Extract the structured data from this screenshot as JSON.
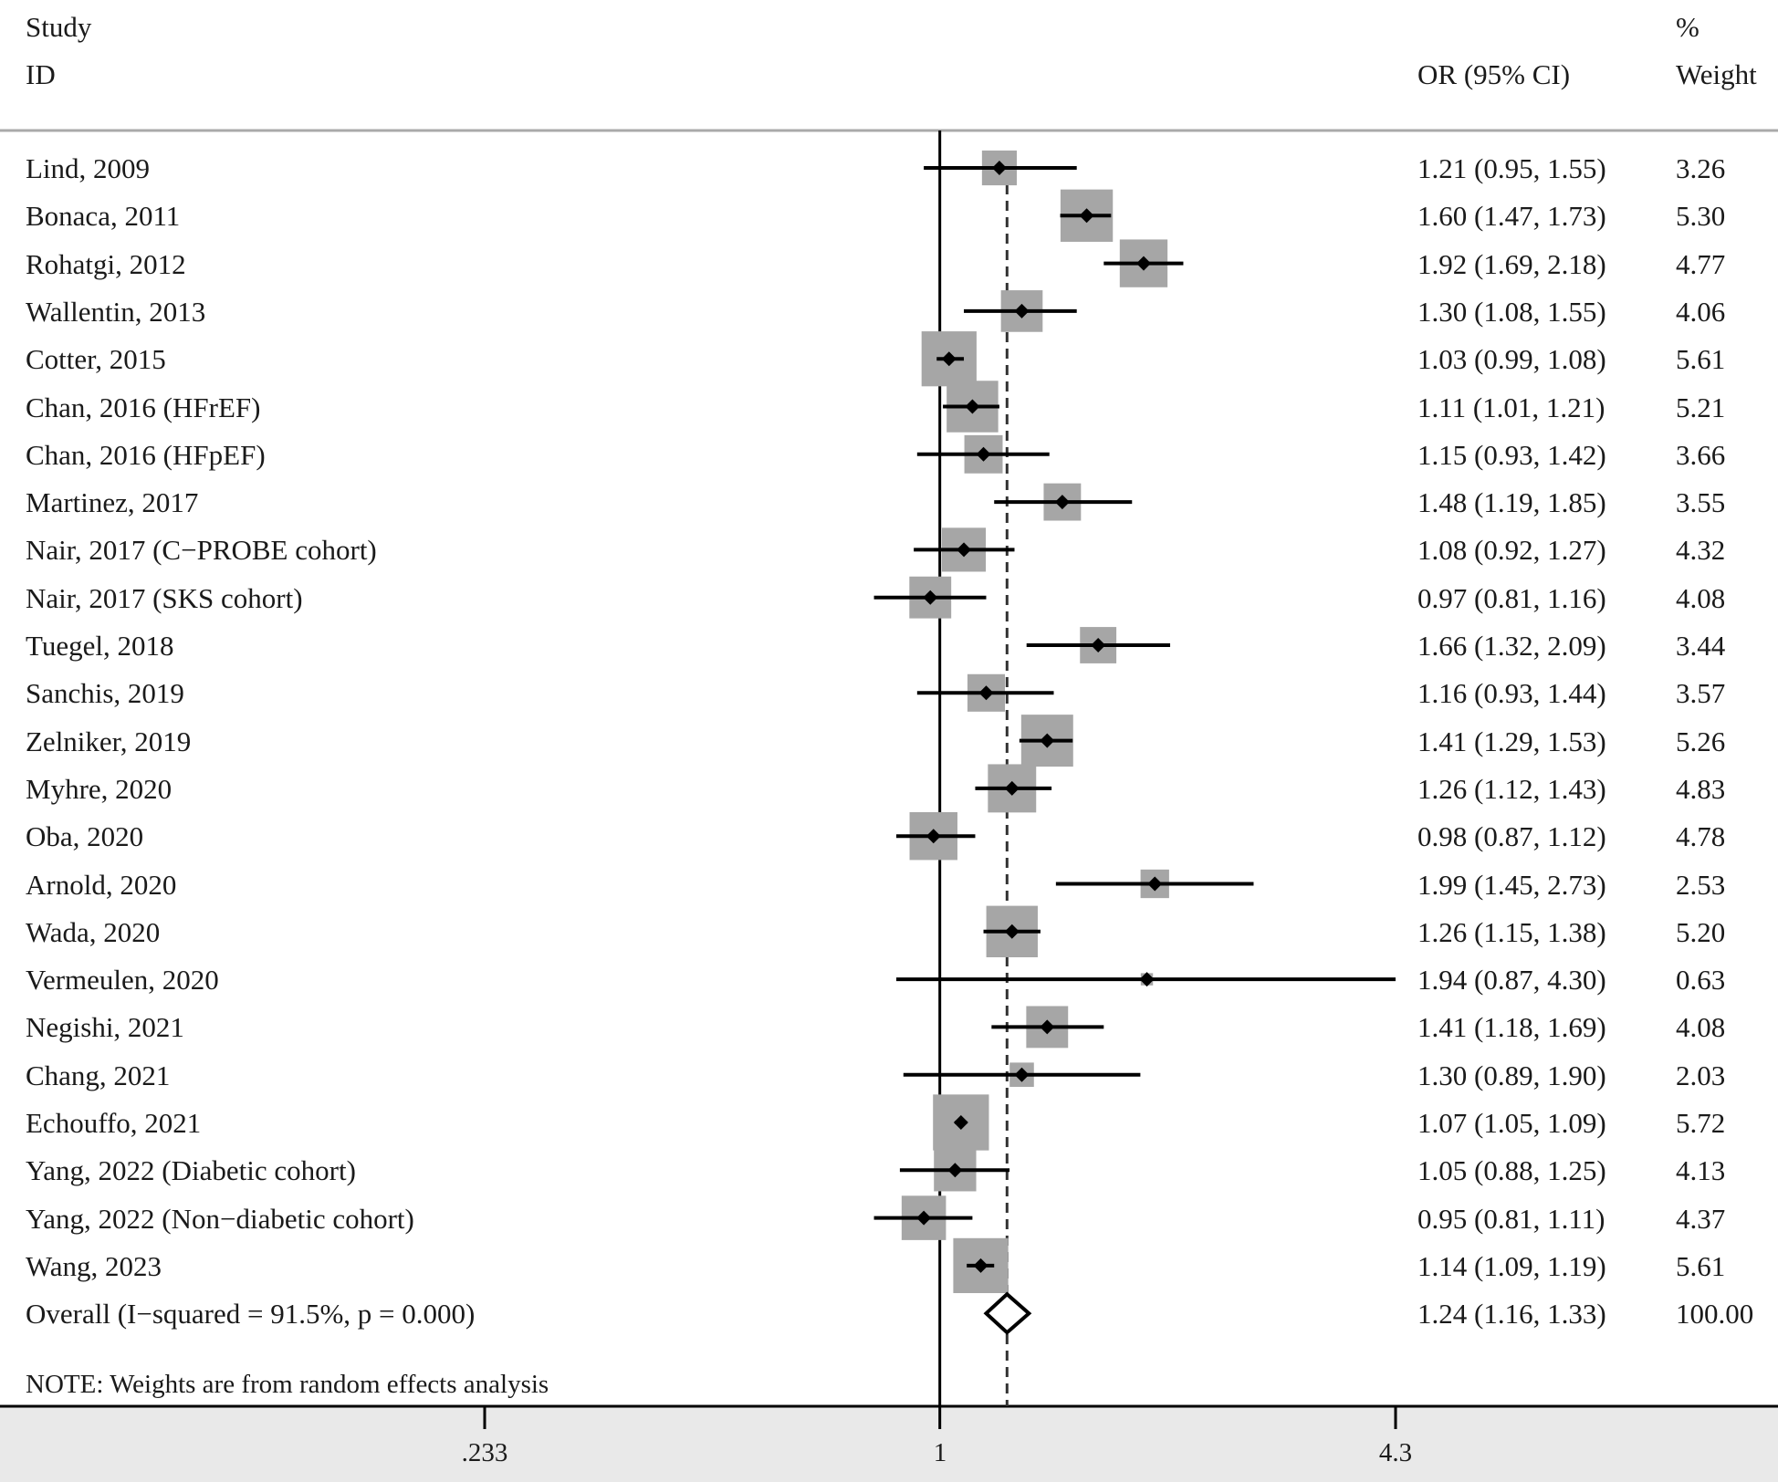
{
  "header": {
    "study_line1": "Study",
    "study_line2": "ID",
    "estimate": "OR (95% CI)",
    "weight_line1": "%",
    "weight_line2": "Weight"
  },
  "note": "NOTE: Weights are from random effects analysis",
  "chart_data": {
    "type": "forest",
    "scale": "log",
    "x_ticks": [
      ".233",
      "1",
      "4.3"
    ],
    "x_range": [
      0.233,
      4.3
    ],
    "null_line": 1,
    "pooled_line": 1.24,
    "studies": [
      {
        "label": "Lind, 2009",
        "or": 1.21,
        "lo": 0.95,
        "hi": 1.55,
        "ci_text": "1.21 (0.95, 1.55)",
        "weight": "3.26"
      },
      {
        "label": "Bonaca, 2011",
        "or": 1.6,
        "lo": 1.47,
        "hi": 1.73,
        "ci_text": "1.60 (1.47, 1.73)",
        "weight": "5.30"
      },
      {
        "label": "Rohatgi, 2012",
        "or": 1.92,
        "lo": 1.69,
        "hi": 2.18,
        "ci_text": "1.92 (1.69, 2.18)",
        "weight": "4.77"
      },
      {
        "label": "Wallentin, 2013",
        "or": 1.3,
        "lo": 1.08,
        "hi": 1.55,
        "ci_text": "1.30 (1.08, 1.55)",
        "weight": "4.06"
      },
      {
        "label": "Cotter, 2015",
        "or": 1.03,
        "lo": 0.99,
        "hi": 1.08,
        "ci_text": "1.03 (0.99, 1.08)",
        "weight": "5.61"
      },
      {
        "label": "Chan, 2016 (HFrEF)",
        "or": 1.11,
        "lo": 1.01,
        "hi": 1.21,
        "ci_text": "1.11 (1.01, 1.21)",
        "weight": "5.21"
      },
      {
        "label": "Chan, 2016 (HFpEF)",
        "or": 1.15,
        "lo": 0.93,
        "hi": 1.42,
        "ci_text": "1.15 (0.93, 1.42)",
        "weight": "3.66"
      },
      {
        "label": "Martinez, 2017",
        "or": 1.48,
        "lo": 1.19,
        "hi": 1.85,
        "ci_text": "1.48 (1.19, 1.85)",
        "weight": "3.55"
      },
      {
        "label": "Nair, 2017 (C−PROBE cohort)",
        "or": 1.08,
        "lo": 0.92,
        "hi": 1.27,
        "ci_text": "1.08 (0.92, 1.27)",
        "weight": "4.32"
      },
      {
        "label": "Nair, 2017 (SKS cohort)",
        "or": 0.97,
        "lo": 0.81,
        "hi": 1.16,
        "ci_text": "0.97 (0.81, 1.16)",
        "weight": "4.08"
      },
      {
        "label": "Tuegel, 2018",
        "or": 1.66,
        "lo": 1.32,
        "hi": 2.09,
        "ci_text": "1.66 (1.32, 2.09)",
        "weight": "3.44"
      },
      {
        "label": "Sanchis, 2019",
        "or": 1.16,
        "lo": 0.93,
        "hi": 1.44,
        "ci_text": "1.16 (0.93, 1.44)",
        "weight": "3.57"
      },
      {
        "label": "Zelniker, 2019",
        "or": 1.41,
        "lo": 1.29,
        "hi": 1.53,
        "ci_text": "1.41 (1.29, 1.53)",
        "weight": "5.26"
      },
      {
        "label": "Myhre, 2020",
        "or": 1.26,
        "lo": 1.12,
        "hi": 1.43,
        "ci_text": "1.26 (1.12, 1.43)",
        "weight": "4.83"
      },
      {
        "label": "Oba, 2020",
        "or": 0.98,
        "lo": 0.87,
        "hi": 1.12,
        "ci_text": "0.98 (0.87, 1.12)",
        "weight": "4.78"
      },
      {
        "label": "Arnold, 2020",
        "or": 1.99,
        "lo": 1.45,
        "hi": 2.73,
        "ci_text": "1.99 (1.45, 2.73)",
        "weight": "2.53"
      },
      {
        "label": "Wada, 2020",
        "or": 1.26,
        "lo": 1.15,
        "hi": 1.38,
        "ci_text": "1.26 (1.15, 1.38)",
        "weight": "5.20"
      },
      {
        "label": "Vermeulen, 2020",
        "or": 1.94,
        "lo": 0.87,
        "hi": 4.3,
        "ci_text": "1.94 (0.87, 4.30)",
        "weight": "0.63"
      },
      {
        "label": "Negishi, 2021",
        "or": 1.41,
        "lo": 1.18,
        "hi": 1.69,
        "ci_text": "1.41 (1.18, 1.69)",
        "weight": "4.08"
      },
      {
        "label": "Chang, 2021",
        "or": 1.3,
        "lo": 0.89,
        "hi": 1.9,
        "ci_text": "1.30 (0.89, 1.90)",
        "weight": "2.03"
      },
      {
        "label": "Echouffo, 2021",
        "or": 1.07,
        "lo": 1.05,
        "hi": 1.09,
        "ci_text": "1.07 (1.05, 1.09)",
        "weight": "5.72"
      },
      {
        "label": "Yang, 2022 (Diabetic cohort)",
        "or": 1.05,
        "lo": 0.88,
        "hi": 1.25,
        "ci_text": "1.05 (0.88, 1.25)",
        "weight": "4.13"
      },
      {
        "label": "Yang, 2022 (Non−diabetic cohort)",
        "or": 0.95,
        "lo": 0.81,
        "hi": 1.11,
        "ci_text": "0.95 (0.81, 1.11)",
        "weight": "4.37"
      },
      {
        "label": "Wang, 2023",
        "or": 1.14,
        "lo": 1.09,
        "hi": 1.19,
        "ci_text": "1.14 (1.09, 1.19)",
        "weight": "5.61"
      }
    ],
    "overall": {
      "label": "Overall  (I−squared = 91.5%, p = 0.000)",
      "or": 1.24,
      "lo": 1.16,
      "hi": 1.33,
      "ci_text": "1.24 (1.16, 1.33)",
      "weight": "100.00"
    }
  }
}
